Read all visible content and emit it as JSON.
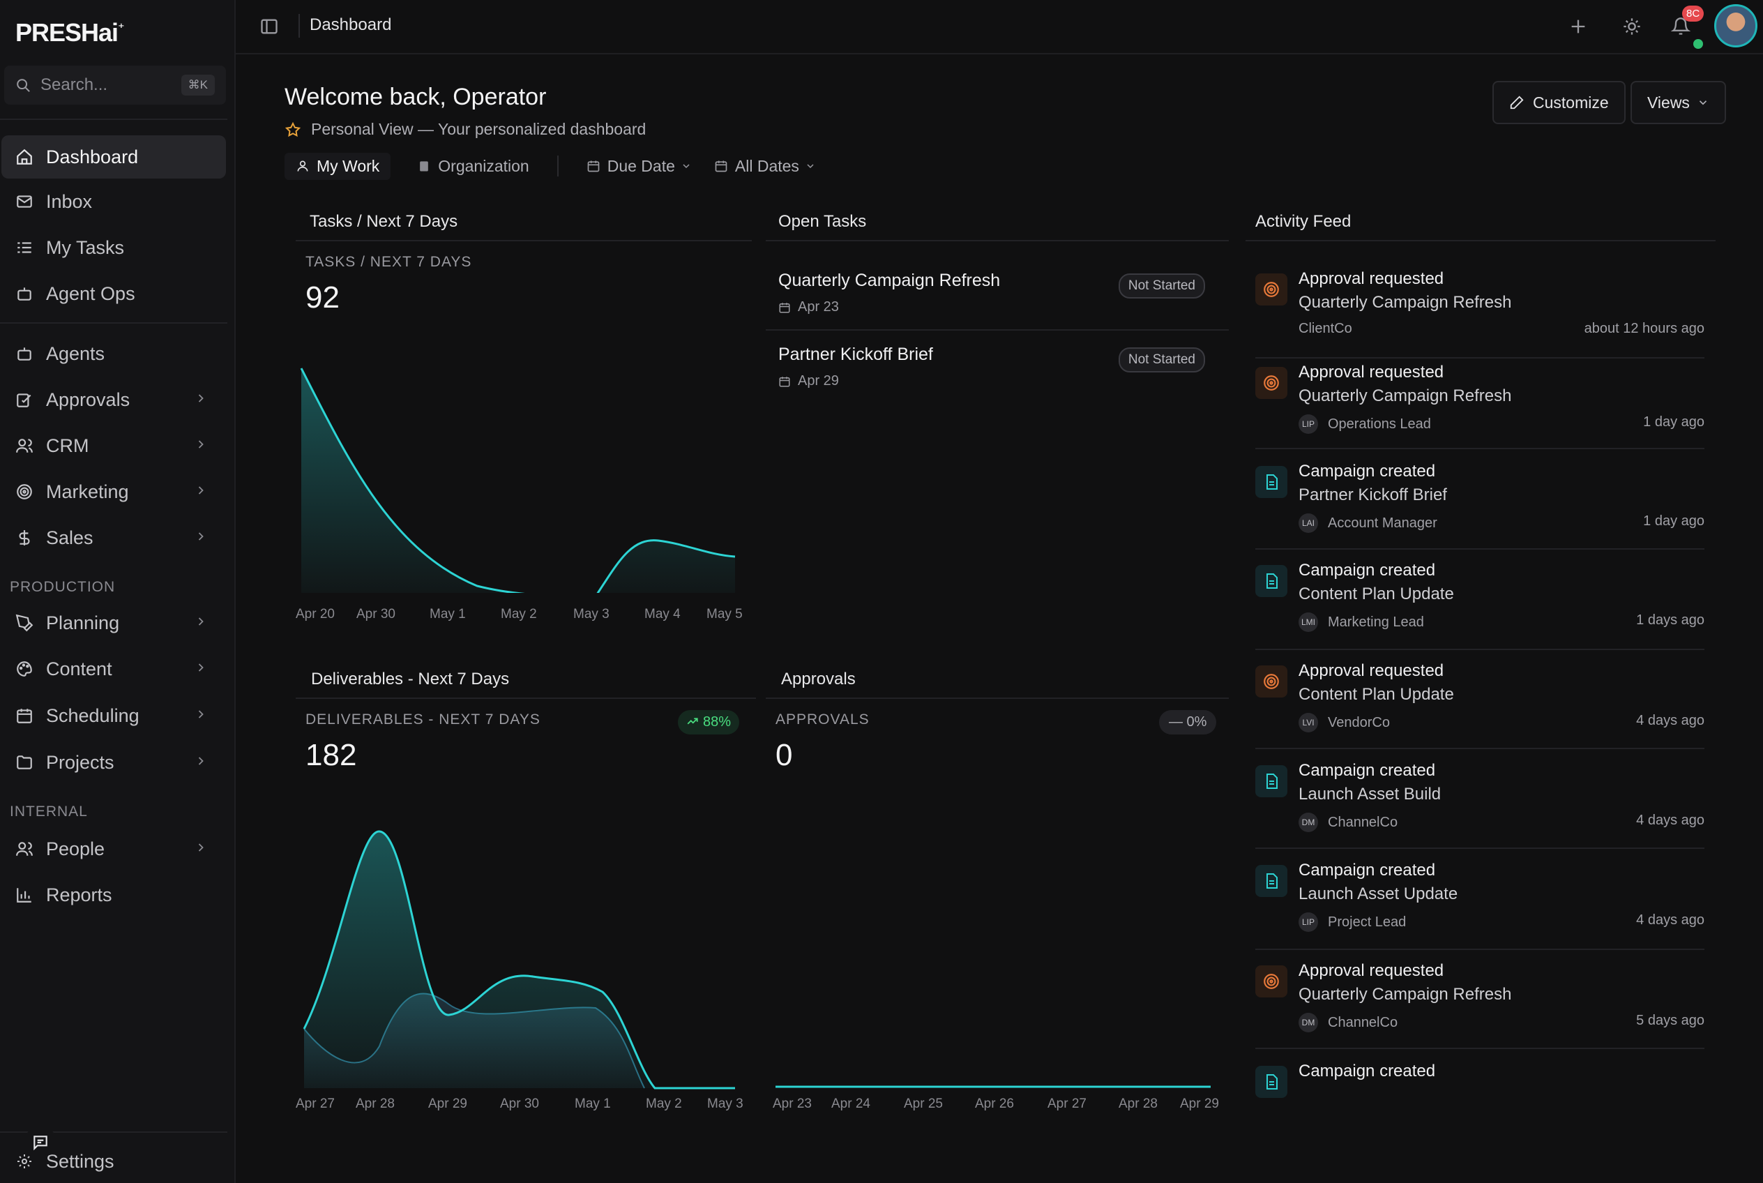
{
  "sidebar": {
    "logo": "PRESHai",
    "search_placeholder": "Search...",
    "search_shortcut": "⌘K",
    "items": [
      {
        "label": "Dashboard"
      },
      {
        "label": "Inbox"
      },
      {
        "label": "My Tasks"
      },
      {
        "label": "Agent Ops"
      },
      {
        "label": "Agents"
      },
      {
        "label": "Approvals"
      },
      {
        "label": "CRM"
      },
      {
        "label": "Marketing"
      },
      {
        "label": "Sales"
      }
    ],
    "production_label": "PRODUCTION",
    "production_items": [
      {
        "label": "Planning"
      },
      {
        "label": "Content"
      },
      {
        "label": "Scheduling"
      },
      {
        "label": "Projects"
      }
    ],
    "internal_label": "INTERNAL",
    "internal_items": [
      {
        "label": "People"
      },
      {
        "label": "Reports"
      }
    ],
    "settings_label": "Settings"
  },
  "topbar": {
    "breadcrumb": "Dashboard",
    "notification_count": "8C"
  },
  "header": {
    "welcome": "Welcome back, Operator",
    "subtitle": "Personal View — Your personalized dashboard",
    "customize_label": "Customize",
    "views_label": "Views"
  },
  "filters": {
    "my_work": "My Work",
    "organization": "Organization",
    "due_date": "Due Date",
    "all_dates": "All Dates"
  },
  "tasks_card": {
    "title": "Tasks / Next 7 Days",
    "metric_label": "TASKS / NEXT 7 DAYS",
    "metric_value": "92",
    "x_labels": [
      "Apr 20",
      "Apr 30",
      "May 1",
      "May 2",
      "May 3",
      "May 4",
      "May 5"
    ]
  },
  "open_tasks": {
    "title": "Open Tasks",
    "items": [
      {
        "name": "Quarterly Campaign Refresh",
        "date": "Apr 23",
        "status": "Not Started"
      },
      {
        "name": "Partner Kickoff Brief",
        "date": "Apr 29",
        "status": "Not Started"
      }
    ]
  },
  "deliverables_card": {
    "title": "Deliverables - Next 7 Days",
    "metric_label": "DELIVERABLES - NEXT 7 DAYS",
    "metric_value": "182",
    "trend": "88%",
    "x_labels": [
      "Apr 27",
      "Apr 28",
      "Apr 29",
      "Apr 30",
      "May 1",
      "May 2",
      "May 3"
    ]
  },
  "approvals_card": {
    "title": "Approvals",
    "metric_label": "APPROVALS",
    "metric_value": "0",
    "trend": "— 0%",
    "x_labels": [
      "Apr 23",
      "Apr 24",
      "Apr 25",
      "Apr 26",
      "Apr 27",
      "Apr 28",
      "Apr 29"
    ]
  },
  "activity": {
    "title": "Activity Feed",
    "items": [
      {
        "type": "approval",
        "title": "Approval requested",
        "subject": "Quarterly Campaign Refresh",
        "who": "ClientCo",
        "initials": "",
        "time": "about 12 hours ago"
      },
      {
        "type": "approval",
        "title": "Approval requested",
        "subject": "Quarterly Campaign Refresh",
        "who": "Operations Lead",
        "initials": "LIP",
        "time": "1 day ago"
      },
      {
        "type": "campaign",
        "title": "Campaign created",
        "subject": "Partner Kickoff Brief",
        "who": "Account Manager",
        "initials": "LAI",
        "time": "1 day ago"
      },
      {
        "type": "campaign",
        "title": "Campaign created",
        "subject": "Content Plan Update",
        "who": "Marketing Lead",
        "initials": "LMI",
        "time": "1 days ago"
      },
      {
        "type": "approval",
        "title": "Approval requested",
        "subject": "Content Plan Update",
        "who": "VendorCo",
        "initials": "LVI",
        "time": "4 days ago"
      },
      {
        "type": "campaign",
        "title": "Campaign created",
        "subject": "Launch Asset Build",
        "who": "ChannelCo",
        "initials": "DM",
        "time": "4 days ago"
      },
      {
        "type": "campaign",
        "title": "Campaign created",
        "subject": "Launch Asset Update",
        "who": "Project Lead",
        "initials": "LIP",
        "time": "4 days ago"
      },
      {
        "type": "approval",
        "title": "Approval requested",
        "subject": "Quarterly Campaign Refresh",
        "who": "ChannelCo",
        "initials": "DM",
        "time": "5 days ago"
      },
      {
        "type": "campaign",
        "title": "Campaign created",
        "subject": "",
        "who": "",
        "initials": "",
        "time": ""
      }
    ]
  },
  "colors": {
    "accent": "#2dd4d4",
    "approval_icon": "#e8793a",
    "campaign_icon": "#2dd4d4",
    "trend_up": "#4ade80"
  }
}
